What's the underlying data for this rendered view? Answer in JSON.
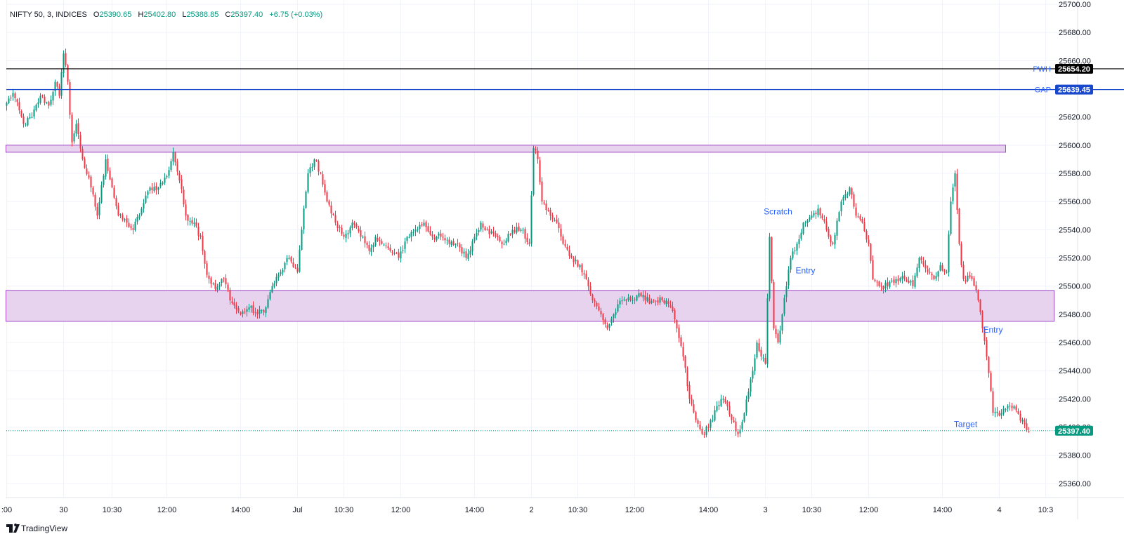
{
  "header": {
    "symbol": "NIFTY 50, 3, INDICES",
    "o_label": "O",
    "o_value": "25390.65",
    "h_label": "H",
    "h_value": "25402.80",
    "l_label": "L",
    "l_value": "25388.85",
    "c_label": "C",
    "c_value": "25397.40",
    "change": "+6.75 (+0.03%)"
  },
  "brand": {
    "name": "TradingView"
  },
  "colors": {
    "up": "#089981",
    "down": "#f23645",
    "zone_fill": "#e8d3ef",
    "zone_stroke": "#a24cc9",
    "pwh_line": "#000000",
    "gap_line": "#1848cc",
    "annotation": "#2962ff",
    "last_price": "#089981",
    "grid": "#f0f3fa"
  },
  "chart_data": {
    "type": "candlestick",
    "title": "NIFTY 50, 3, INDICES",
    "ylim": [
      25350,
      25703
    ],
    "y_ticks": [
      "25700.00",
      "25680.00",
      "25660.00",
      "25640.00",
      "25620.00",
      "25600.00",
      "25580.00",
      "25560.00",
      "25540.00",
      "25520.00",
      "25500.00",
      "25480.00",
      "25460.00",
      "25440.00",
      "25420.00",
      "25400.00",
      "25380.00",
      "25360.00"
    ],
    "y_tick_values": [
      25700,
      25680,
      25660,
      25640,
      25620,
      25600,
      25580,
      25560,
      25540,
      25520,
      25500,
      25480,
      25460,
      25440,
      25420,
      25400,
      25380,
      25360
    ],
    "x_ticks": [
      ":00",
      "30",
      "10:30",
      "12:00",
      "14:00",
      "Jul",
      "10:30",
      "12:00",
      "14:00",
      "2",
      "10:30",
      "12:00",
      "14:00",
      "3",
      "10:30",
      "12:00",
      "14:00",
      "4",
      "10:3"
    ],
    "x_tick_bars": [
      0,
      27,
      50,
      76,
      111,
      138,
      160,
      187,
      222,
      249,
      271,
      298,
      333,
      360,
      382,
      409,
      444,
      471,
      493
    ],
    "bars_per_session": 111,
    "path": [
      [
        0,
        25630
      ],
      [
        3,
        25637
      ],
      [
        8,
        25615
      ],
      [
        12,
        25620
      ],
      [
        16,
        25635
      ],
      [
        20,
        25628
      ],
      [
        23,
        25645
      ],
      [
        25,
        25635
      ],
      [
        27,
        25665
      ],
      [
        29,
        25645
      ],
      [
        31,
        25602
      ],
      [
        33,
        25615
      ],
      [
        36,
        25590
      ],
      [
        40,
        25570
      ],
      [
        43,
        25550
      ],
      [
        47,
        25590
      ],
      [
        50,
        25570
      ],
      [
        53,
        25550
      ],
      [
        57,
        25545
      ],
      [
        60,
        25540
      ],
      [
        64,
        25555
      ],
      [
        68,
        25570
      ],
      [
        72,
        25570
      ],
      [
        76,
        25578
      ],
      [
        79,
        25595
      ],
      [
        82,
        25575
      ],
      [
        85,
        25550
      ],
      [
        89,
        25545
      ],
      [
        92,
        25535
      ],
      [
        95,
        25508
      ],
      [
        99,
        25498
      ],
      [
        103,
        25505
      ],
      [
        107,
        25488
      ],
      [
        111,
        25480
      ],
      [
        115,
        25485
      ],
      [
        119,
        25480
      ],
      [
        123,
        25485
      ],
      [
        126,
        25500
      ],
      [
        130,
        25510
      ],
      [
        134,
        25520
      ],
      [
        138,
        25510
      ],
      [
        140,
        25540
      ],
      [
        143,
        25580
      ],
      [
        146,
        25590
      ],
      [
        149,
        25580
      ],
      [
        152,
        25560
      ],
      [
        156,
        25545
      ],
      [
        160,
        25535
      ],
      [
        164,
        25545
      ],
      [
        168,
        25535
      ],
      [
        172,
        25525
      ],
      [
        175,
        25535
      ],
      [
        178,
        25530
      ],
      [
        182,
        25525
      ],
      [
        186,
        25520
      ],
      [
        190,
        25535
      ],
      [
        194,
        25540
      ],
      [
        198,
        25545
      ],
      [
        202,
        25535
      ],
      [
        206,
        25535
      ],
      [
        210,
        25530
      ],
      [
        214,
        25530
      ],
      [
        218,
        25520
      ],
      [
        222,
        25535
      ],
      [
        225,
        25545
      ],
      [
        228,
        25540
      ],
      [
        232,
        25535
      ],
      [
        236,
        25530
      ],
      [
        240,
        25540
      ],
      [
        244,
        25540
      ],
      [
        248,
        25530
      ],
      [
        250,
        25598
      ],
      [
        252,
        25590
      ],
      [
        254,
        25560
      ],
      [
        258,
        25550
      ],
      [
        261,
        25545
      ],
      [
        264,
        25530
      ],
      [
        268,
        25520
      ],
      [
        272,
        25515
      ],
      [
        275,
        25505
      ],
      [
        278,
        25490
      ],
      [
        282,
        25480
      ],
      [
        285,
        25470
      ],
      [
        288,
        25480
      ],
      [
        292,
        25490
      ],
      [
        296,
        25490
      ],
      [
        300,
        25495
      ],
      [
        303,
        25490
      ],
      [
        307,
        25490
      ],
      [
        311,
        25490
      ],
      [
        315,
        25485
      ],
      [
        318,
        25470
      ],
      [
        321,
        25450
      ],
      [
        324,
        25420
      ],
      [
        327,
        25405
      ],
      [
        330,
        25395
      ],
      [
        333,
        25400
      ],
      [
        337,
        25415
      ],
      [
        340,
        25420
      ],
      [
        344,
        25405
      ],
      [
        347,
        25395
      ],
      [
        350,
        25410
      ],
      [
        352,
        25425
      ],
      [
        354,
        25440
      ],
      [
        356,
        25460
      ],
      [
        358,
        25450
      ],
      [
        360,
        25445
      ],
      [
        362,
        25535
      ],
      [
        364,
        25470
      ],
      [
        366,
        25460
      ],
      [
        368,
        25480
      ],
      [
        370,
        25500
      ],
      [
        372,
        25520
      ],
      [
        375,
        25530
      ],
      [
        378,
        25545
      ],
      [
        382,
        25550
      ],
      [
        385,
        25555
      ],
      [
        389,
        25540
      ],
      [
        392,
        25530
      ],
      [
        396,
        25560
      ],
      [
        400,
        25570
      ],
      [
        403,
        25550
      ],
      [
        406,
        25545
      ],
      [
        409,
        25530
      ],
      [
        411,
        25505
      ],
      [
        414,
        25500
      ],
      [
        418,
        25500
      ],
      [
        422,
        25505
      ],
      [
        426,
        25505
      ],
      [
        430,
        25500
      ],
      [
        433,
        25520
      ],
      [
        437,
        25510
      ],
      [
        440,
        25505
      ],
      [
        443,
        25515
      ],
      [
        446,
        25510
      ],
      [
        448,
        25560
      ],
      [
        450,
        25580
      ],
      [
        452,
        25530
      ],
      [
        454,
        25505
      ],
      [
        458,
        25505
      ],
      [
        461,
        25490
      ],
      [
        463,
        25470
      ],
      [
        465,
        25450
      ],
      [
        468,
        25410
      ],
      [
        472,
        25410
      ],
      [
        475,
        25415
      ],
      [
        479,
        25412
      ],
      [
        483,
        25402
      ],
      [
        485,
        25397
      ]
    ],
    "rects": [
      {
        "from_bar": 0,
        "to_bar": 474,
        "low": 25595,
        "high": 25600
      },
      {
        "from_bar": 0,
        "to_bar": 497,
        "low": 25475,
        "high": 25497
      }
    ],
    "hlines": [
      {
        "label": "PWH",
        "value": 25654.2,
        "text": "25654.20"
      },
      {
        "label": "GAP",
        "value": 25639.45,
        "text": "25639.45"
      }
    ],
    "annotations": [
      {
        "text": "Scratch",
        "bar": 366,
        "y": 25551
      },
      {
        "text": "Entry",
        "bar": 379,
        "y": 25509
      },
      {
        "text": "Entry",
        "bar": 468,
        "y": 25467
      },
      {
        "text": "Target",
        "bar": 455,
        "y": 25400
      }
    ],
    "last_price": {
      "value": 25397.4,
      "text": "25397.40"
    },
    "grid": true,
    "legend": "top-left"
  }
}
